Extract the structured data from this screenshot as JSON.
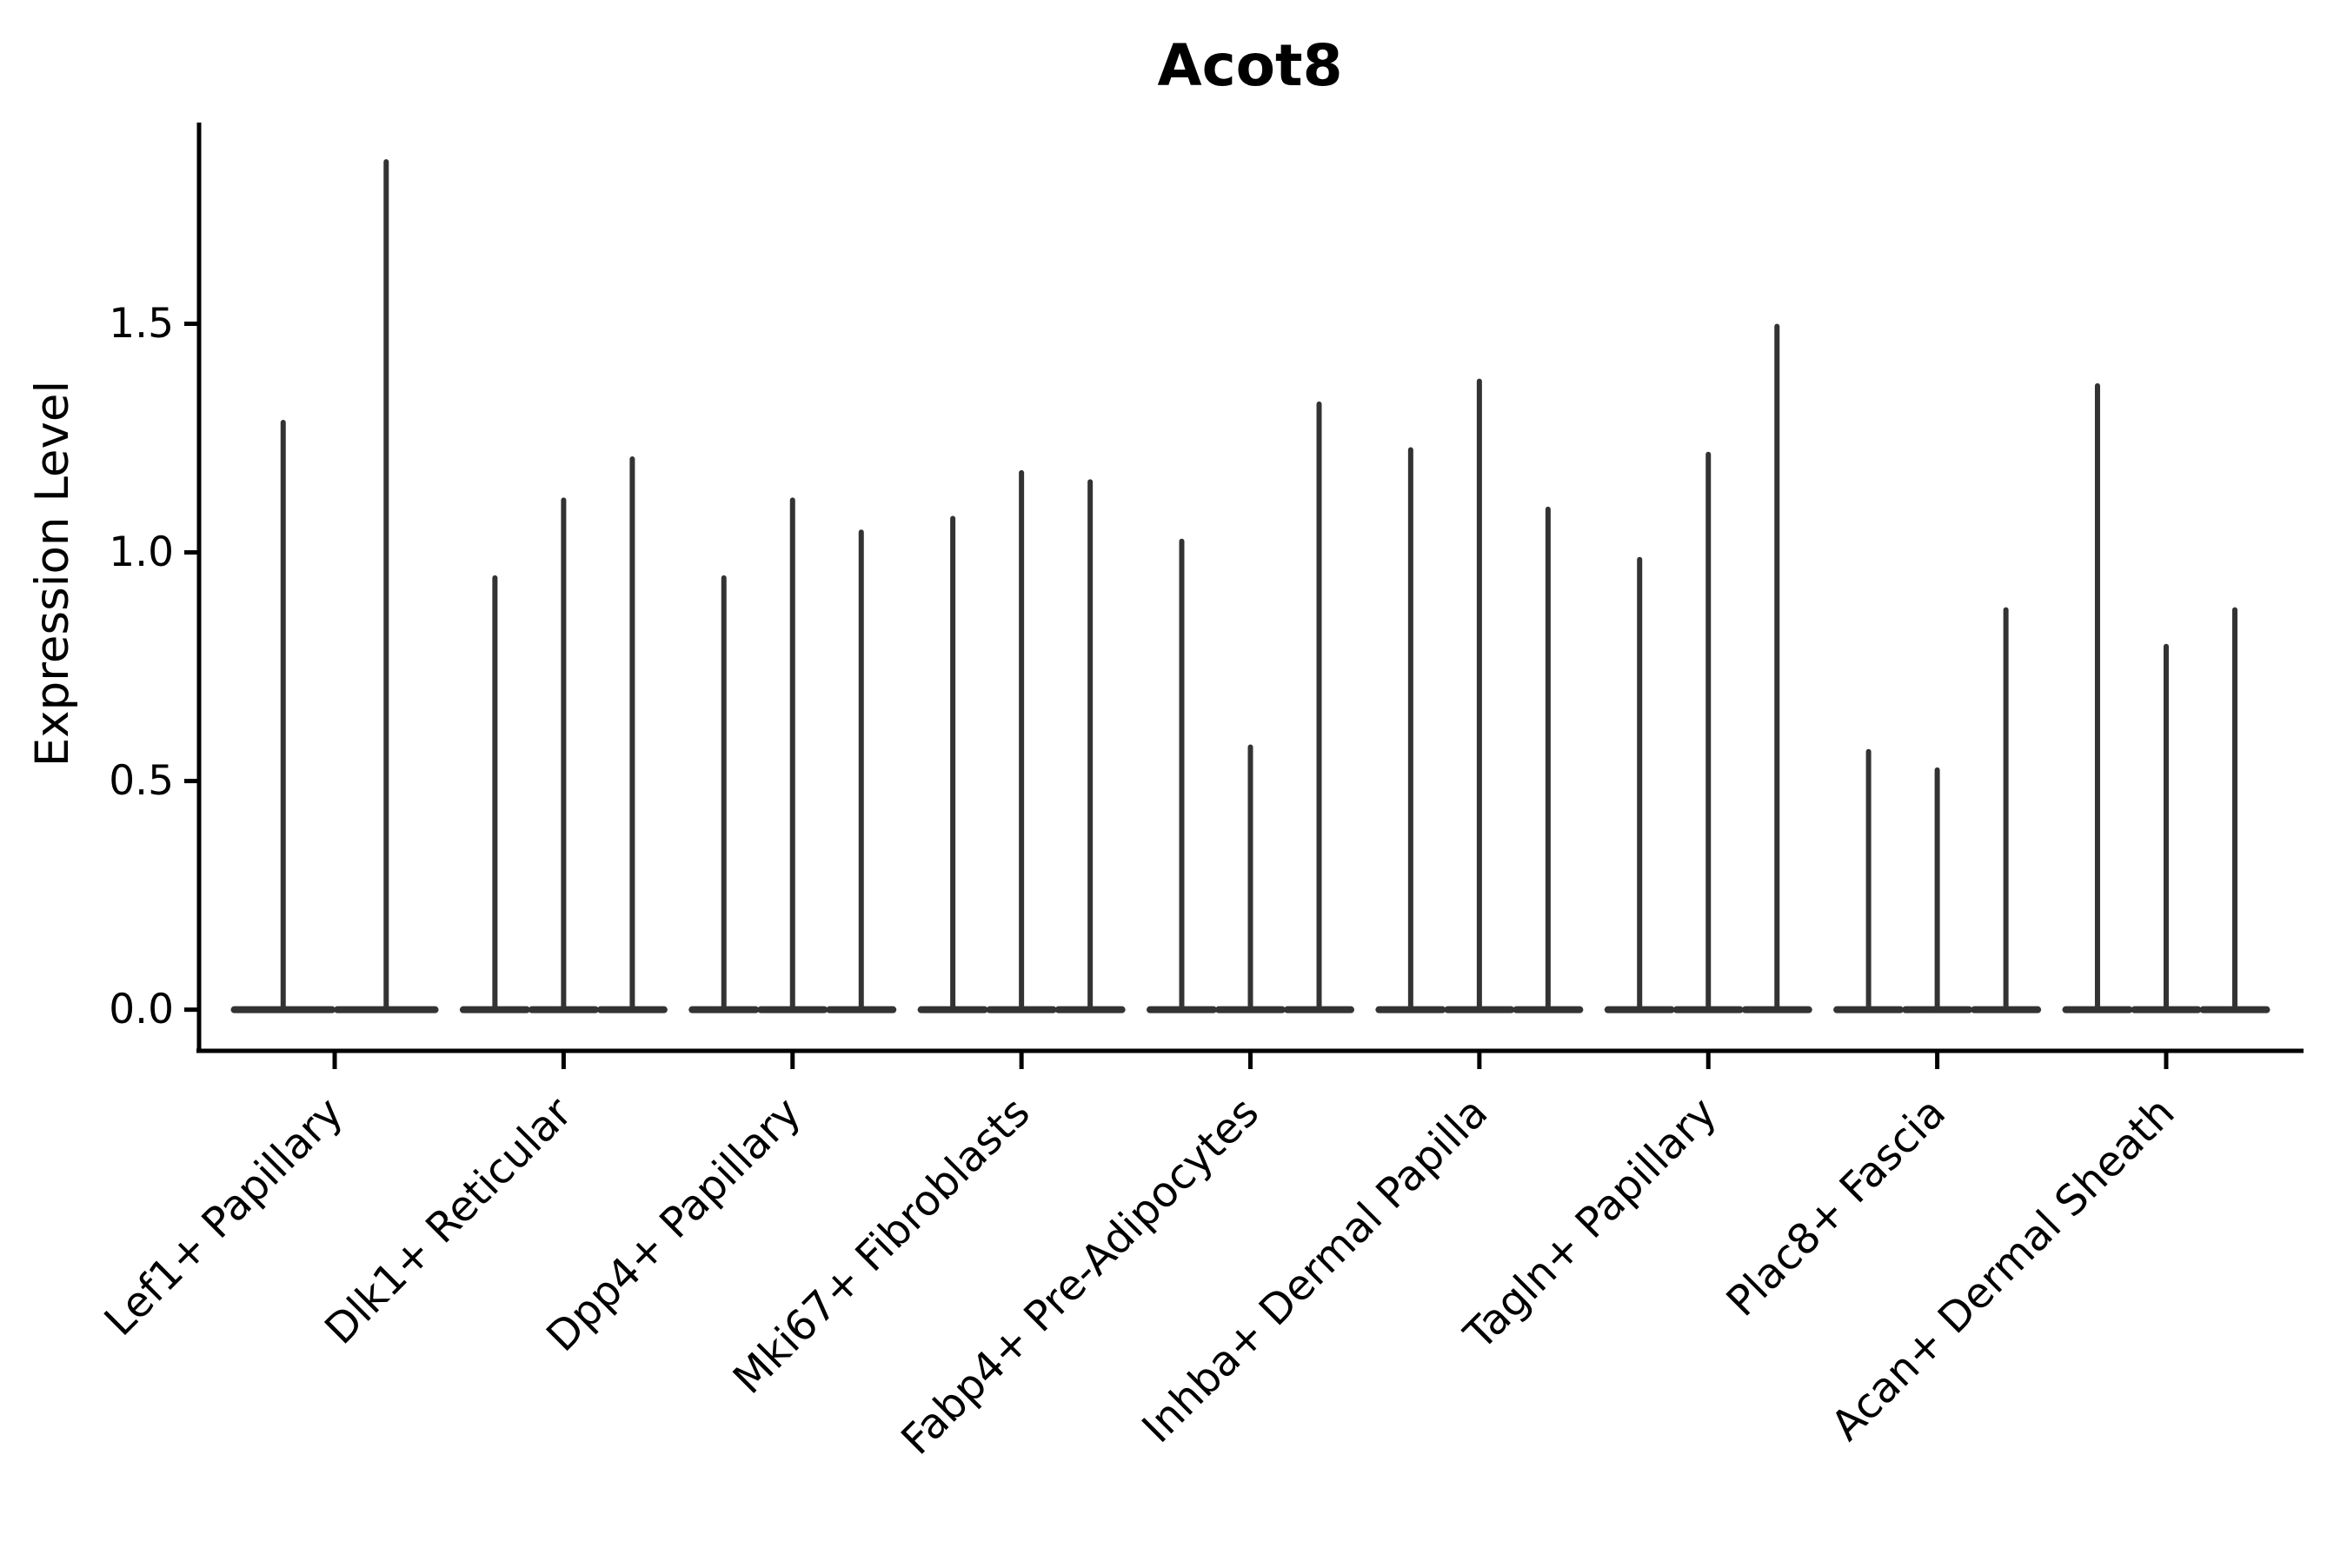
{
  "title": "Acot8",
  "chart_data": {
    "type": "violin",
    "title": "Acot8",
    "xlabel": "",
    "ylabel": "Expression Level",
    "ylim": [
      -0.09,
      1.94
    ],
    "grid": false,
    "legend": "none",
    "violin_color": "#333333",
    "axis_color": "#000000",
    "yticks": [
      {
        "value": 0.0,
        "label": "0.0"
      },
      {
        "value": 0.5,
        "label": "0.5"
      },
      {
        "value": 1.0,
        "label": "1.0"
      },
      {
        "value": 1.5,
        "label": "1.5"
      }
    ],
    "categories": [
      "Lef1+ Papillary",
      "Dlk1+ Reticular",
      "Dpp4+ Papillary",
      "Mki67+ Fibroblasts",
      "Fabp4+ Pre-Adipocytes",
      "Inhba+ Dermal Papilla",
      "Tagln+ Papillary",
      "Plac8+ Fascia",
      "Acan+ Dermal Sheath"
    ],
    "groups": [
      {
        "label": "Lef1+ Papillary",
        "violin_max_values": [
          1.29,
          1.86
        ]
      },
      {
        "label": "Dlk1+ Reticular",
        "violin_max_values": [
          0.95,
          1.12,
          1.21
        ]
      },
      {
        "label": "Dpp4+ Papillary",
        "violin_max_values": [
          0.95,
          1.12,
          1.05
        ]
      },
      {
        "label": "Mki67+ Fibroblasts",
        "violin_max_values": [
          1.08,
          1.18,
          1.16
        ]
      },
      {
        "label": "Fabp4+ Pre-Adipocytes",
        "violin_max_values": [
          1.03,
          0.58,
          1.33
        ]
      },
      {
        "label": "Inhba+ Dermal Papilla",
        "violin_max_values": [
          1.23,
          1.38,
          1.1
        ]
      },
      {
        "label": "Tagln+ Papillary",
        "violin_max_values": [
          0.99,
          1.22,
          1.5
        ]
      },
      {
        "label": "Plac8+ Fascia",
        "violin_max_values": [
          0.57,
          0.53,
          0.88
        ]
      },
      {
        "label": "Acan+ Dermal Sheath",
        "violin_max_values": [
          1.37,
          0.8,
          0.88
        ]
      }
    ],
    "note": "Each violin is collapsed to a flat base at 0 with a thin spike up to its max expression value"
  }
}
